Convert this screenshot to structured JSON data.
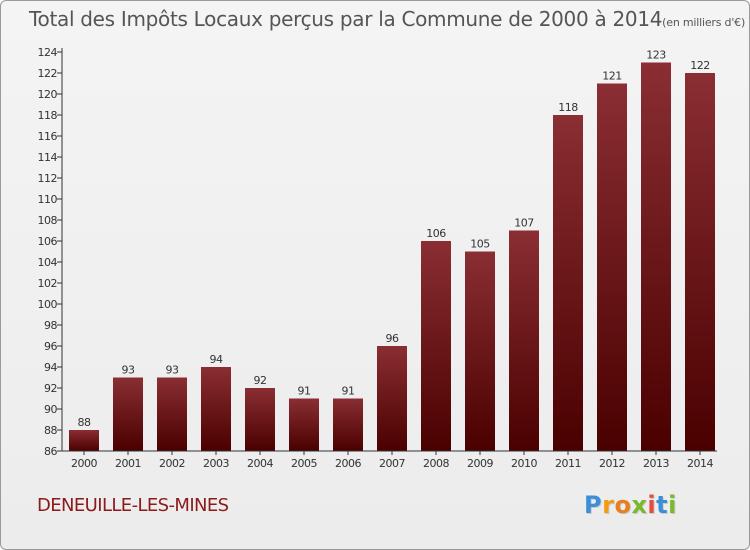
{
  "title": "Total des Impôts Locaux perçus par la Commune de 2000 à 2014",
  "unit_label": "(en milliers d'€)",
  "commune": "DENEUILLE-LES-MINES",
  "logo": {
    "text": "Proxiti",
    "letters": [
      {
        "char": "P",
        "color": "#3a8fd6"
      },
      {
        "char": "r",
        "color": "#f39c12"
      },
      {
        "char": "o",
        "color": "#e67e22"
      },
      {
        "char": "x",
        "color": "#7ab929"
      },
      {
        "char": "i",
        "color": "#e74c3c"
      },
      {
        "char": "t",
        "color": "#3a8fd6"
      },
      {
        "char": "i",
        "color": "#7ab929"
      }
    ]
  },
  "colors": {
    "bar_top": "#8a2e33",
    "bar_bottom": "#4a0000",
    "axis": "#333333",
    "tick_text": "#333333",
    "label_text": "#333333"
  },
  "chart_data": {
    "type": "bar",
    "title": "Total des Impôts Locaux perçus par la Commune de 2000 à 2014",
    "xlabel": "",
    "ylabel": "en milliers d'€",
    "categories": [
      "2000",
      "2001",
      "2002",
      "2003",
      "2004",
      "2005",
      "2006",
      "2007",
      "2008",
      "2009",
      "2010",
      "2011",
      "2012",
      "2013",
      "2014"
    ],
    "values": [
      88,
      93,
      93,
      94,
      92,
      91,
      91,
      96,
      106,
      105,
      107,
      118,
      121,
      123,
      122
    ],
    "ylim": [
      86,
      124
    ],
    "yticks": [
      86,
      88,
      90,
      92,
      94,
      96,
      98,
      100,
      102,
      104,
      106,
      108,
      110,
      112,
      114,
      116,
      118,
      120,
      122,
      124
    ],
    "grid": false,
    "legend": "none"
  }
}
